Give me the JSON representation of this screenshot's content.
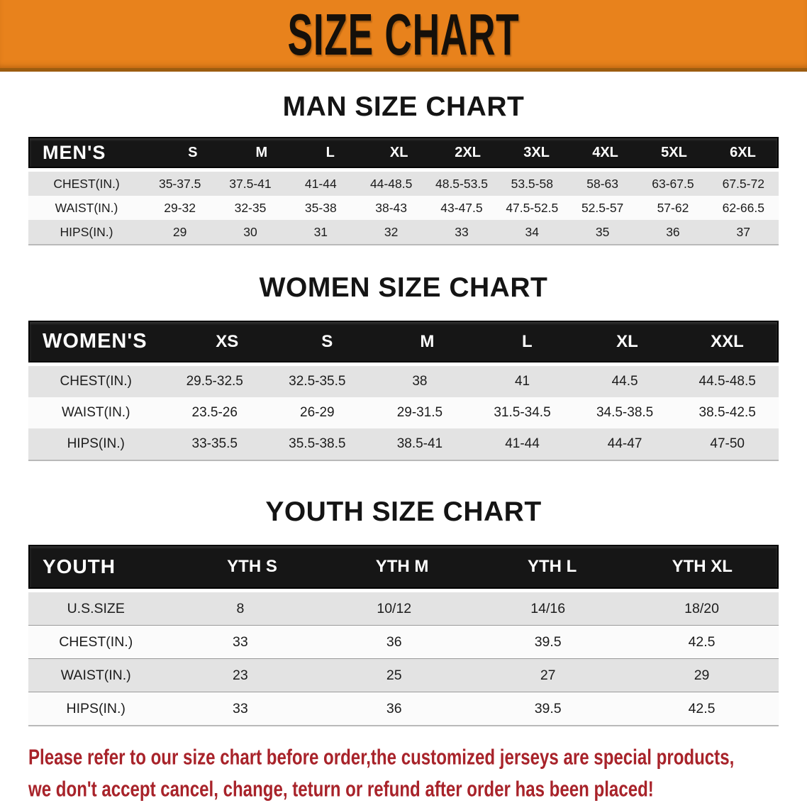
{
  "banner": {
    "title": "SIZE CHART"
  },
  "sections": {
    "men": {
      "title": "MAN SIZE CHART",
      "corner": "MEN'S",
      "columns": [
        "S",
        "M",
        "L",
        "XL",
        "2XL",
        "3XL",
        "4XL",
        "5XL",
        "6XL"
      ],
      "rows": [
        {
          "label": "CHEST(IN.)",
          "values": [
            "35-37.5",
            "37.5-41",
            "41-44",
            "44-48.5",
            "48.5-53.5",
            "53.5-58",
            "58-63",
            "63-67.5",
            "67.5-72"
          ]
        },
        {
          "label": "WAIST(IN.)",
          "values": [
            "29-32",
            "32-35",
            "35-38",
            "38-43",
            "43-47.5",
            "47.5-52.5",
            "52.5-57",
            "57-62",
            "62-66.5"
          ]
        },
        {
          "label": "HIPS(IN.)",
          "values": [
            "29",
            "30",
            "31",
            "32",
            "33",
            "34",
            "35",
            "36",
            "37"
          ]
        }
      ]
    },
    "women": {
      "title": "WOMEN SIZE CHART",
      "corner": "WOMEN'S",
      "columns": [
        "XS",
        "S",
        "M",
        "L",
        "XL",
        "XXL"
      ],
      "rows": [
        {
          "label": "CHEST(IN.)",
          "values": [
            "29.5-32.5",
            "32.5-35.5",
            "38",
            "41",
            "44.5",
            "44.5-48.5"
          ]
        },
        {
          "label": "WAIST(IN.)",
          "values": [
            "23.5-26",
            "26-29",
            "29-31.5",
            "31.5-34.5",
            "34.5-38.5",
            "38.5-42.5"
          ]
        },
        {
          "label": "HIPS(IN.)",
          "values": [
            "33-35.5",
            "35.5-38.5",
            "38.5-41",
            "41-44",
            "44-47",
            "47-50"
          ]
        }
      ]
    },
    "youth": {
      "title": "YOUTH SIZE CHART",
      "corner": "YOUTH",
      "columns": [
        "YTH S",
        "YTH M",
        "YTH L",
        "YTH XL"
      ],
      "rows": [
        {
          "label": "U.S.SIZE",
          "values": [
            "8",
            "10/12",
            "14/16",
            "18/20"
          ]
        },
        {
          "label": "CHEST(IN.)",
          "values": [
            "33",
            "36",
            "39.5",
            "42.5"
          ]
        },
        {
          "label": "WAIST(IN.)",
          "values": [
            "23",
            "25",
            "27",
            "29"
          ]
        },
        {
          "label": "HIPS(IN.)",
          "values": [
            "33",
            "36",
            "39.5",
            "42.5"
          ]
        }
      ]
    }
  },
  "disclaimer": {
    "line1": "Please refer to our size chart before order,the customized jerseys are special products,",
    "line2": "we don't accept cancel, change, teturn or refund after order has been placed!"
  },
  "colors": {
    "banner_bg": "#e8821c",
    "table_header_bg": "#161616",
    "row_stripe": "#e3e3e3",
    "disclaimer_text": "#a8232a"
  }
}
